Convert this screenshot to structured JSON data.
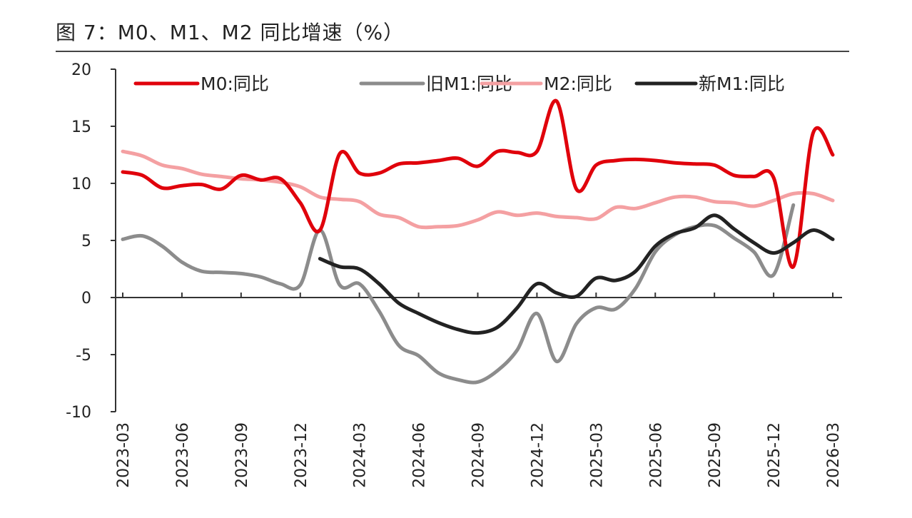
{
  "title": "图 7：M0、M1、M2 同比增速（%）",
  "chart_data": {
    "type": "line",
    "title": "图 7：M0、M1、M2 同比增速（%）",
    "xlabel": "",
    "ylabel": "",
    "ylim": [
      -10,
      20
    ],
    "yticks": [
      "20",
      "15",
      "10",
      "5",
      "0",
      "-5",
      "-10"
    ],
    "grid": false,
    "legend_position": "top",
    "x": [
      "2023-03",
      "2023-04",
      "2023-05",
      "2023-06",
      "2023-07",
      "2023-08",
      "2023-09",
      "2023-10",
      "2023-11",
      "2023-12",
      "2024-01",
      "2024-02",
      "2024-03",
      "2024-04",
      "2024-05",
      "2024-06",
      "2024-07",
      "2024-08",
      "2024-09",
      "2024-10",
      "2024-11",
      "2024-12",
      "2025-01",
      "2025-02",
      "2025-03",
      "2025-04",
      "2025-05",
      "2025-06",
      "2025-07",
      "2025-08",
      "2025-09",
      "2025-10",
      "2025-11",
      "2025-12",
      "2026-01",
      "2026-02",
      "2026-03"
    ],
    "xtick_labels": [
      "2023-03",
      "2023-06",
      "2023-09",
      "2023-12",
      "2024-03",
      "2024-06",
      "2024-09",
      "2024-12",
      "2025-03",
      "2025-06",
      "2025-09",
      "2025-12",
      "2026-03"
    ],
    "series": [
      {
        "name": "M0:同比",
        "color": "#e0000b",
        "values": [
          11.0,
          10.7,
          9.6,
          9.8,
          9.9,
          9.5,
          10.7,
          10.3,
          10.4,
          8.3,
          5.9,
          12.6,
          10.9,
          10.9,
          11.7,
          11.8,
          12.0,
          12.2,
          11.5,
          12.8,
          12.7,
          12.8,
          17.2,
          9.5,
          11.6,
          12.0,
          12.1,
          12.0,
          11.8,
          11.7,
          11.6,
          10.7,
          10.6,
          10.5,
          2.7,
          14.4,
          12.5
        ]
      },
      {
        "name": "旧M1:同比",
        "color": "#8c8c8c",
        "values": [
          5.1,
          5.4,
          4.5,
          3.1,
          2.3,
          2.2,
          2.1,
          1.8,
          1.2,
          1.1,
          5.9,
          1.1,
          1.2,
          -1.2,
          -4.2,
          -5.1,
          -6.6,
          -7.2,
          -7.4,
          -6.4,
          -4.6,
          -1.4,
          -5.6,
          -2.3,
          -0.9,
          -1.0,
          0.8,
          4.0,
          5.5,
          6.2,
          6.3,
          5.2,
          4.0,
          2.0,
          8.1,
          null,
          null
        ]
      },
      {
        "name": "M2:同比",
        "color": "#f4a0a2",
        "values": [
          12.8,
          12.4,
          11.6,
          11.3,
          10.8,
          10.6,
          10.4,
          10.3,
          10.1,
          9.7,
          8.8,
          8.6,
          8.4,
          7.3,
          7.0,
          6.2,
          6.2,
          6.3,
          6.8,
          7.5,
          7.2,
          7.4,
          7.1,
          7.0,
          6.9,
          7.9,
          7.8,
          8.3,
          8.8,
          8.8,
          8.4,
          8.3,
          8.0,
          8.5,
          9.1,
          9.1,
          8.5
        ]
      },
      {
        "name": "新M1:同比",
        "color": "#222222",
        "values": [
          null,
          null,
          null,
          null,
          null,
          null,
          null,
          null,
          null,
          null,
          3.4,
          2.7,
          2.5,
          1.2,
          -0.5,
          -1.4,
          -2.2,
          -2.8,
          -3.1,
          -2.6,
          -0.9,
          1.2,
          0.4,
          0.1,
          1.7,
          1.5,
          2.3,
          4.5,
          5.6,
          6.1,
          7.2,
          6.0,
          4.8,
          3.9,
          4.8,
          5.9,
          5.1
        ]
      }
    ]
  }
}
